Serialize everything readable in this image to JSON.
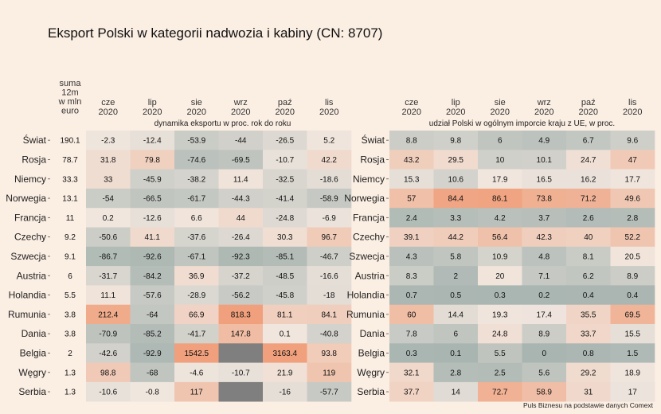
{
  "title": "Eksport Polski w kategorii nadwozia i kabiny (CN: 8707)",
  "caption": "Puls Biznesu na podstawie danych Comext",
  "colors": {
    "background": "#fbeee3",
    "low": "#a9b5b1",
    "mid": "#f0e6de",
    "high": "#f0a07c",
    "missing": "#7f7f7f"
  },
  "chart_data": [
    {
      "type": "heatmap",
      "subtitle": "dynamika eksportu w proc. rok do roku",
      "size_header": [
        "suma",
        "12m",
        "w mln",
        "euro"
      ],
      "columns": [
        {
          "month": "cze",
          "year": "2020"
        },
        {
          "month": "lip",
          "year": "2020"
        },
        {
          "month": "sie",
          "year": "2020"
        },
        {
          "month": "wrz",
          "year": "2020"
        },
        {
          "month": "paź",
          "year": "2020"
        },
        {
          "month": "lis",
          "year": "2020"
        }
      ],
      "rows": [
        {
          "country": "Świat",
          "sum12m": "190.1",
          "values": [
            -2.3,
            -12.4,
            -53.9,
            -44,
            -26.5,
            5.2
          ]
        },
        {
          "country": "Rosja",
          "sum12m": "78.7",
          "values": [
            31.8,
            79.8,
            -74.6,
            -69.5,
            -10.7,
            42.2
          ]
        },
        {
          "country": "Niemcy",
          "sum12m": "33.3",
          "values": [
            33,
            -45.9,
            -38.2,
            11.4,
            -32.5,
            -18.6
          ]
        },
        {
          "country": "Norwegia",
          "sum12m": "13.1",
          "values": [
            -54,
            -66.5,
            -61.7,
            -44.3,
            -41.4,
            -58.9
          ]
        },
        {
          "country": "Francja",
          "sum12m": "11",
          "values": [
            0.2,
            -12.6,
            6.6,
            44,
            -24.8,
            -6.9
          ]
        },
        {
          "country": "Czechy",
          "sum12m": "9.2",
          "values": [
            -50.6,
            41.1,
            -37.6,
            -26.4,
            30.3,
            96.7
          ]
        },
        {
          "country": "Szwecja",
          "sum12m": "9.1",
          "values": [
            -86.7,
            -92.6,
            -67.1,
            -92.3,
            -85.1,
            -46.7
          ]
        },
        {
          "country": "Austria",
          "sum12m": "6",
          "values": [
            -31.7,
            -84.2,
            36.9,
            -37.2,
            -48.5,
            -16.6
          ]
        },
        {
          "country": "Holandia",
          "sum12m": "5.5",
          "values": [
            11.1,
            -57.6,
            -28.9,
            -56.2,
            -45.8,
            -18
          ]
        },
        {
          "country": "Rumunia",
          "sum12m": "3.8",
          "values": [
            212.4,
            -64,
            66.9,
            818.3,
            81.1,
            84.1
          ]
        },
        {
          "country": "Dania",
          "sum12m": "3.8",
          "values": [
            -70.9,
            -85.2,
            -41.7,
            147.8,
            0.1,
            -40.8
          ]
        },
        {
          "country": "Belgia",
          "sum12m": "2",
          "values": [
            -42.6,
            -92.9,
            1542.5,
            null,
            3163.4,
            93.8
          ]
        },
        {
          "country": "Węgry",
          "sum12m": "1.3",
          "values": [
            98.8,
            -68,
            -4.6,
            -10.7,
            21.9,
            119
          ]
        },
        {
          "country": "Serbia",
          "sum12m": "1.3",
          "values": [
            -10.6,
            -0.8,
            117,
            null,
            -16,
            -57.7
          ]
        }
      ]
    },
    {
      "type": "heatmap",
      "subtitle": "udział Polski w ogólnym imporcie kraju z UE, w proc.",
      "columns": [
        {
          "month": "cze",
          "year": "2020"
        },
        {
          "month": "lip",
          "year": "2020"
        },
        {
          "month": "sie",
          "year": "2020"
        },
        {
          "month": "wrz",
          "year": "2020"
        },
        {
          "month": "paź",
          "year": "2020"
        },
        {
          "month": "lis",
          "year": "2020"
        }
      ],
      "rows": [
        {
          "country": "Świat",
          "values": [
            8.8,
            9.8,
            6,
            4.9,
            6.7,
            9.6
          ]
        },
        {
          "country": "Rosja",
          "values": [
            43.2,
            29.5,
            10,
            10.1,
            24.7,
            47
          ]
        },
        {
          "country": "Niemcy",
          "values": [
            15.3,
            10.6,
            17.9,
            16.5,
            16.2,
            17.7
          ]
        },
        {
          "country": "Norwegia",
          "values": [
            57,
            84.4,
            86.1,
            73.8,
            71.2,
            49.6
          ]
        },
        {
          "country": "Francja",
          "values": [
            2.4,
            3.3,
            4.2,
            3.7,
            2.6,
            2.8
          ]
        },
        {
          "country": "Czechy",
          "values": [
            39.1,
            44.2,
            56.4,
            42.3,
            40,
            52.2
          ]
        },
        {
          "country": "Szwecja",
          "values": [
            4.3,
            5.8,
            10.9,
            4.8,
            8.1,
            20.5
          ]
        },
        {
          "country": "Austria",
          "values": [
            8.3,
            2,
            20,
            7.1,
            6.2,
            8.9
          ]
        },
        {
          "country": "Holandia",
          "values": [
            0.7,
            0.5,
            0.3,
            0.2,
            0.4,
            0.4
          ]
        },
        {
          "country": "Rumunia",
          "values": [
            60,
            14.4,
            19.3,
            17.4,
            35.5,
            69.5
          ]
        },
        {
          "country": "Dania",
          "values": [
            7.8,
            6,
            24.8,
            8.9,
            33.7,
            15.5
          ]
        },
        {
          "country": "Belgia",
          "values": [
            0.3,
            0.1,
            5.5,
            0,
            0.8,
            1.5
          ]
        },
        {
          "country": "Węgry",
          "values": [
            32.1,
            2.8,
            2.5,
            5.6,
            29.2,
            18.9
          ]
        },
        {
          "country": "Serbia",
          "values": [
            37.7,
            14,
            72.7,
            58.9,
            31,
            17
          ]
        }
      ]
    }
  ]
}
